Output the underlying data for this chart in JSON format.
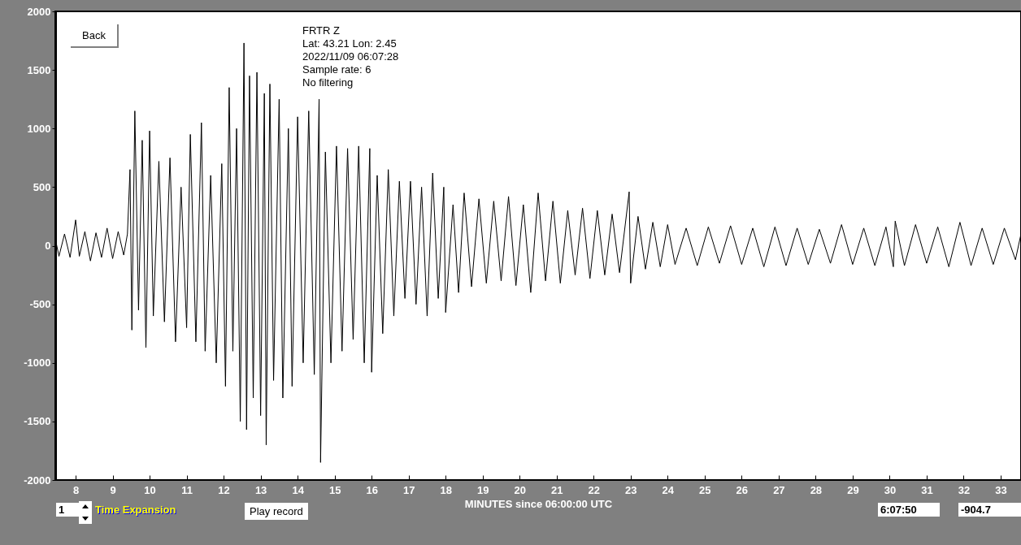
{
  "chart_data": {
    "type": "line",
    "xlabel": "MINUTES since 06:00:00 UTC",
    "annotations": [
      "FRTR  Z",
      "Lat: 43.21 Lon: 2.45",
      "2022/11/09 06:07:28",
      "Sample rate: 6",
      "No filtering",
      "Back",
      "Play record",
      "1",
      "Time Expansion",
      "6:07:50",
      "-904.7"
    ],
    "x": [
      7.45,
      7.55,
      7.7,
      7.85,
      8.0,
      8.1,
      8.25,
      8.4,
      8.55,
      8.7,
      8.85,
      9.0,
      9.15,
      9.3,
      9.4,
      9.47,
      9.52,
      9.6,
      9.7,
      9.8,
      9.9,
      10.0,
      10.1,
      10.25,
      10.4,
      10.55,
      10.7,
      10.85,
      11.0,
      11.1,
      11.25,
      11.4,
      11.5,
      11.65,
      11.8,
      11.95,
      12.05,
      12.15,
      12.25,
      12.35,
      12.45,
      12.55,
      12.62,
      12.7,
      12.8,
      12.9,
      13.0,
      13.1,
      13.15,
      13.25,
      13.35,
      13.5,
      13.6,
      13.75,
      13.85,
      14.0,
      14.15,
      14.3,
      14.45,
      14.58,
      14.62,
      14.75,
      14.9,
      15.05,
      15.2,
      15.35,
      15.5,
      15.65,
      15.8,
      15.95,
      16.0,
      16.15,
      16.3,
      16.45,
      16.6,
      16.75,
      16.9,
      17.05,
      17.2,
      17.35,
      17.5,
      17.65,
      17.8,
      17.95,
      18.0,
      18.2,
      18.35,
      18.5,
      18.7,
      18.9,
      19.1,
      19.3,
      19.5,
      19.7,
      19.9,
      20.1,
      20.3,
      20.5,
      20.7,
      20.9,
      21.1,
      21.3,
      21.5,
      21.7,
      21.9,
      22.1,
      22.3,
      22.5,
      22.7,
      22.96,
      23.0,
      23.2,
      23.4,
      23.6,
      23.8,
      24.0,
      24.2,
      24.5,
      24.8,
      25.1,
      25.4,
      25.7,
      26.0,
      26.3,
      26.6,
      26.9,
      27.2,
      27.5,
      27.8,
      28.1,
      28.4,
      28.7,
      29.0,
      29.3,
      29.6,
      29.9,
      30.1,
      30.15,
      30.4,
      30.7,
      31.0,
      31.3,
      31.6,
      31.9,
      32.2,
      32.5,
      32.8,
      33.1,
      33.4,
      33.55
    ],
    "series": [
      {
        "color": "#000000",
        "values": [
          60,
          -90,
          100,
          -100,
          220,
          -90,
          120,
          -130,
          110,
          -100,
          150,
          -110,
          120,
          -80,
          100,
          650,
          -720,
          1150,
          -550,
          900,
          -870,
          980,
          -600,
          720,
          -650,
          750,
          -820,
          500,
          -700,
          950,
          -820,
          1050,
          -900,
          600,
          -1000,
          700,
          -1200,
          1350,
          -900,
          1000,
          -1500,
          1730,
          -1570,
          1450,
          -1300,
          1480,
          -1450,
          1300,
          -1700,
          1380,
          -1150,
          1250,
          -1300,
          1000,
          -1200,
          1100,
          -1000,
          1150,
          -1100,
          1250,
          -1850,
          800,
          -1000,
          850,
          -900,
          830,
          -800,
          850,
          -1000,
          830,
          -1080,
          600,
          -750,
          650,
          -600,
          550,
          -450,
          550,
          -500,
          500,
          -600,
          620,
          -450,
          500,
          -570,
          350,
          -400,
          450,
          -350,
          400,
          -320,
          380,
          -300,
          420,
          -340,
          350,
          -400,
          450,
          -300,
          380,
          -320,
          300,
          -250,
          320,
          -280,
          300,
          -250,
          270,
          -230,
          460,
          -320,
          250,
          -200,
          200,
          -180,
          180,
          -160,
          150,
          -170,
          160,
          -150,
          170,
          -160,
          150,
          -180,
          160,
          -170,
          150,
          -160,
          140,
          -150,
          180,
          -160,
          150,
          -170,
          160,
          -180,
          210,
          -170,
          180,
          -150,
          160,
          -180,
          200,
          -170,
          150,
          -160,
          150,
          -120,
          100
        ]
      }
    ],
    "xlim": [
      7.45,
      33.55
    ],
    "xticks": [
      8,
      9,
      10,
      11,
      12,
      13,
      14,
      15,
      16,
      17,
      18,
      19,
      20,
      21,
      22,
      23,
      24,
      25,
      26,
      27,
      28,
      29,
      30,
      31,
      32,
      33
    ],
    "ylim": [
      -2000,
      2000
    ],
    "yticks": [
      -2000,
      -1500,
      -1000,
      -500,
      0,
      500,
      1000,
      1500,
      2000
    ],
    "grid": false
  }
}
